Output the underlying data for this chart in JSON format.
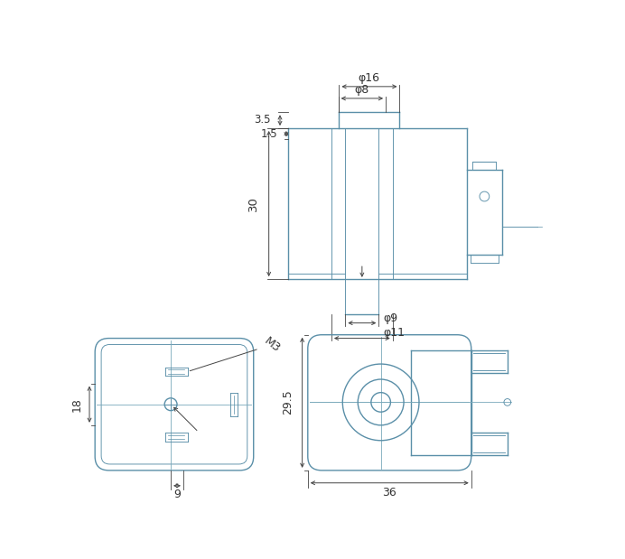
{
  "bg_color": "#ffffff",
  "lc": "#5a8fa8",
  "dc": "#444444",
  "clc": "#7aaabb",
  "lw": 1.0,
  "tlw": 0.65,
  "fig_w": 6.92,
  "fig_h": 6.19,
  "ann": {
    "phi16": "φ16",
    "phi8": "φ8",
    "phi9": "φ9",
    "phi11": "φ11",
    "d30": "30",
    "d35": "3.5",
    "d15": "1.5",
    "d18": "18",
    "d9": "9",
    "d29_5": "29.5",
    "d36": "36",
    "m3": "M3"
  }
}
